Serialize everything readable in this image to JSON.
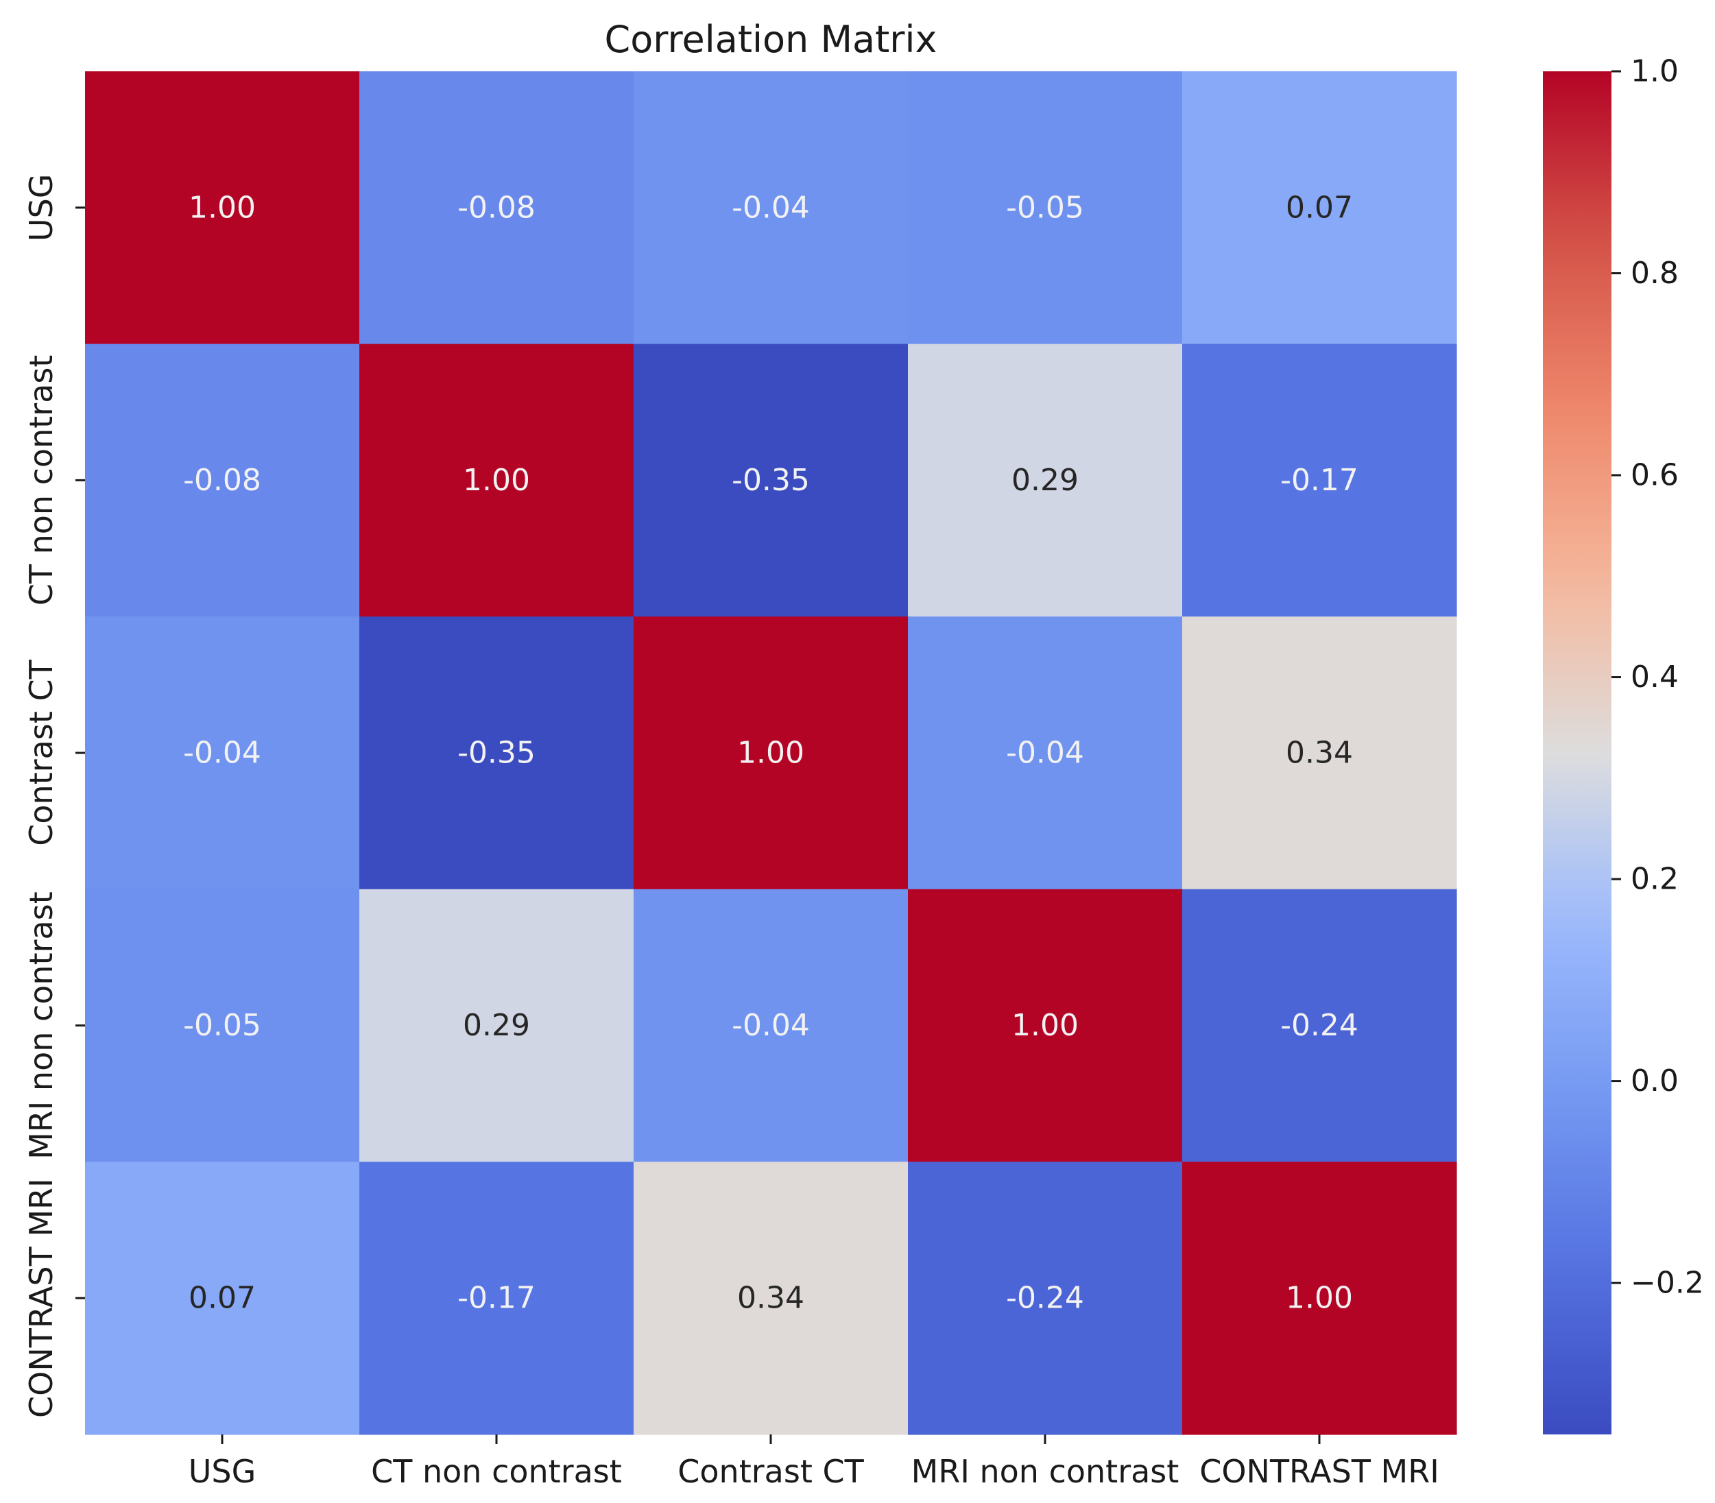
{
  "chart_data": {
    "type": "heatmap",
    "title": "Correlation Matrix",
    "variables": [
      "USG",
      "CT non contrast",
      "Contrast CT",
      "MRI non contrast",
      "CONTRAST MRI"
    ],
    "row_labels": [
      "USG",
      "CT non contrast",
      "Contrast CT",
      "MRI non contrast",
      "CONTRAST MRI"
    ],
    "col_labels": [
      "USG",
      "CT non contrast",
      "Contrast CT",
      "MRI non contrast",
      "CONTRAST MRI"
    ],
    "values": [
      [
        1.0,
        -0.08,
        -0.04,
        -0.05,
        0.07
      ],
      [
        -0.08,
        1.0,
        -0.35,
        0.29,
        -0.17
      ],
      [
        -0.04,
        -0.35,
        1.0,
        -0.04,
        0.34
      ],
      [
        -0.05,
        0.29,
        -0.04,
        1.0,
        -0.24
      ],
      [
        0.07,
        -0.17,
        0.34,
        -0.24,
        1.0
      ]
    ],
    "value_format": "2 decimals",
    "colormap": "coolwarm",
    "colorbar": {
      "vmin": -0.35,
      "vmax": 1.0,
      "ticks": [
        -0.2,
        0.0,
        0.2,
        0.4,
        0.6,
        0.8,
        1.0
      ],
      "tick_labels": [
        "−0.2",
        "0.0",
        "0.2",
        "0.4",
        "0.6",
        "0.8",
        "1.0"
      ],
      "position": "right"
    },
    "xlabel": "",
    "ylabel": ""
  }
}
